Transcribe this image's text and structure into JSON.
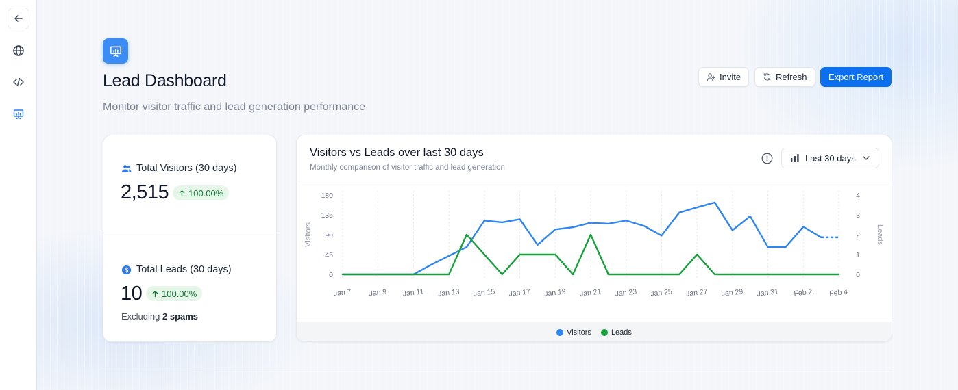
{
  "nav": {
    "items": [
      {
        "icon": "back-arrow-icon"
      },
      {
        "icon": "globe-icon"
      },
      {
        "icon": "code-icon"
      },
      {
        "icon": "presentation-chart-icon"
      }
    ]
  },
  "header": {
    "title": "Lead Dashboard",
    "subtitle": "Monitor visitor traffic and lead generation performance",
    "invite_label": "Invite",
    "refresh_label": "Refresh",
    "export_label": "Export Report",
    "accent": "#0b6ff0"
  },
  "stats": {
    "visitors": {
      "label": "Total Visitors (30 days)",
      "value": "2,515",
      "change": "100.00%"
    },
    "leads": {
      "label": "Total Leads (30 days)",
      "value": "10",
      "change": "100.00%"
    },
    "excluding_prefix": "Excluding",
    "excluding_count": "2 spams"
  },
  "chart": {
    "title": "Visitors vs Leads over last 30 days",
    "subtitle": "Monthly comparison of visitor traffic and lead generation",
    "range_label": "Last 30 days"
  },
  "chart_data": {
    "type": "line",
    "title": "Visitors vs Leads over last 30 days",
    "x": [
      "Jan 7",
      "Jan 8",
      "Jan 9",
      "Jan 10",
      "Jan 11",
      "Jan 12",
      "Jan 13",
      "Jan 14",
      "Jan 15",
      "Jan 16",
      "Jan 17",
      "Jan 18",
      "Jan 19",
      "Jan 20",
      "Jan 21",
      "Jan 22",
      "Jan 23",
      "Jan 24",
      "Jan 25",
      "Jan 26",
      "Jan 27",
      "Jan 28",
      "Jan 29",
      "Jan 30",
      "Jan 31",
      "Feb 1",
      "Feb 2",
      "Feb 3",
      "Feb 4"
    ],
    "tick_labels": [
      "Jan 7",
      "Jan 9",
      "Jan 11",
      "Jan 13",
      "Jan 15",
      "Jan 17",
      "Jan 19",
      "Jan 21",
      "Jan 23",
      "Jan 25",
      "Jan 27",
      "Jan 29",
      "Jan 31",
      "Feb 2",
      "Feb 4"
    ],
    "series": [
      {
        "name": "Visitors",
        "axis": "left",
        "color": "#2e86f0",
        "values": [
          0,
          0,
          0,
          0,
          0,
          22,
          42,
          62,
          122,
          118,
          125,
          67,
          102,
          107,
          117,
          115,
          122,
          110,
          88,
          140,
          152,
          163,
          100,
          132,
          62,
          62,
          108,
          84,
          84
        ],
        "dashed_from_index": 27
      },
      {
        "name": "Leads",
        "axis": "right",
        "color": "#17a03c",
        "values": [
          0,
          0,
          0,
          0,
          0,
          0,
          0,
          2,
          1,
          0,
          1,
          1,
          1,
          0,
          2,
          0,
          0,
          0,
          0,
          0,
          1,
          0,
          0,
          0,
          0,
          0,
          0,
          0,
          0
        ]
      }
    ],
    "y_left": {
      "label": "Visitors",
      "ticks": [
        0,
        45,
        90,
        135,
        180
      ],
      "ylim": [
        0,
        180
      ]
    },
    "y_right": {
      "label": "Leads",
      "ticks": [
        0,
        1,
        2,
        3,
        4
      ],
      "ylim": [
        0,
        4
      ]
    },
    "legend": [
      "Visitors",
      "Leads"
    ],
    "legend_position": "bottom"
  }
}
